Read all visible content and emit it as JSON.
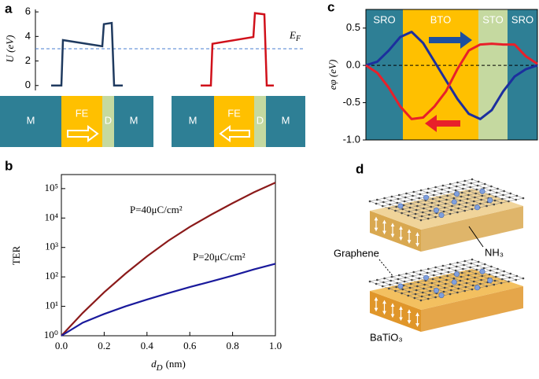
{
  "chart_data": [
    {
      "type": "line",
      "panel": "a",
      "ylabel": "U (eV)",
      "categories": [
        null,
        null,
        null,
        null,
        null,
        null,
        null,
        null
      ],
      "series": [
        {
          "color": "#1f3a5f",
          "values": [
            0,
            0,
            3.7,
            3.2,
            5.0,
            5.1,
            0,
            0
          ]
        },
        {
          "color": "#d0101a",
          "values": [
            0,
            0,
            3.4,
            3.95,
            5.9,
            5.8,
            0,
            0
          ]
        }
      ],
      "ylim": [
        -0.4,
        6.2
      ],
      "yticks": [
        0,
        2,
        4,
        6
      ],
      "fermi_level": 3.0,
      "fermi_label": {
        "main": "E",
        "sub": "F"
      },
      "schematic_left": [
        "M",
        "FE",
        "D",
        "M"
      ],
      "schematic_right": [
        "M",
        "FE",
        "D",
        "M"
      ]
    },
    {
      "type": "line",
      "panel": "b",
      "ylabel": "TER",
      "xlabel": {
        "main": "d",
        "sub": "D",
        "unit": "(nm)"
      },
      "x": [
        0,
        0.1,
        0.2,
        0.3,
        0.4,
        0.5,
        0.6,
        0.7,
        0.8,
        0.9,
        1.0
      ],
      "series": [
        {
          "name": "P=40μC/cm²",
          "color": "#8b1a1a",
          "values": [
            1,
            6,
            30,
            130,
            500,
            1700,
            5000,
            13000,
            32000,
            75000,
            160000
          ]
        },
        {
          "name": "P=20μC/cm²",
          "color": "#1a1a9c",
          "values": [
            1,
            2.8,
            5.5,
            10,
            17,
            28,
            45,
            70,
            110,
            180,
            280
          ]
        }
      ],
      "xlim": [
        0,
        1.0
      ],
      "xticks": [
        {
          "value": 0,
          "label": "0.0"
        },
        0.2,
        0.4,
        0.6,
        0.8,
        {
          "value": 1,
          "label": "1.0"
        }
      ],
      "ylim": [
        1,
        300000
      ],
      "log_y": true,
      "yticks": [
        {
          "value": 1,
          "label": "10⁰"
        },
        {
          "value": 10,
          "label": "10¹"
        },
        {
          "value": 100,
          "label": "10²"
        },
        {
          "value": 1000,
          "label": "10³"
        },
        {
          "value": 10000,
          "label": "10⁴"
        },
        {
          "value": 100000,
          "label": "10⁵"
        }
      ]
    },
    {
      "type": "line",
      "panel": "c",
      "ylabel": "eφ (eV)",
      "categories": [
        null,
        null,
        null,
        null,
        null,
        null,
        null,
        null,
        null,
        null,
        null,
        null,
        null,
        null,
        null,
        null
      ],
      "series": [
        {
          "color": "#1c2f9e",
          "values": [
            0,
            0.05,
            0.2,
            0.38,
            0.45,
            0.3,
            0.05,
            -0.2,
            -0.45,
            -0.65,
            -0.72,
            -0.6,
            -0.35,
            -0.15,
            -0.05,
            0
          ]
        },
        {
          "color": "#e8202a",
          "values": [
            0,
            -0.1,
            -0.3,
            -0.55,
            -0.72,
            -0.7,
            -0.55,
            -0.35,
            -0.05,
            0.2,
            0.28,
            0.29,
            0.28,
            0.28,
            0.12,
            0.02
          ]
        }
      ],
      "ylim": [
        -1.0,
        0.75
      ],
      "yticks": [
        0.5,
        {
          "value": 0,
          "label": "0.0"
        },
        -0.5,
        {
          "value": -1,
          "label": "-1.0"
        }
      ],
      "zero_line": true,
      "regions": [
        {
          "label": "SRO",
          "color": "#2e7f95"
        },
        {
          "label": "BTO",
          "color": "#ffc000"
        },
        {
          "label": "STO",
          "color": "#c5d9a0"
        },
        {
          "label": "SRO",
          "color": "#2e7f95"
        }
      ]
    }
  ],
  "panel_d": {
    "panel": "d",
    "graphene": "Graphene",
    "molecule": "NH₃",
    "substrate": "BaTiO₃"
  }
}
